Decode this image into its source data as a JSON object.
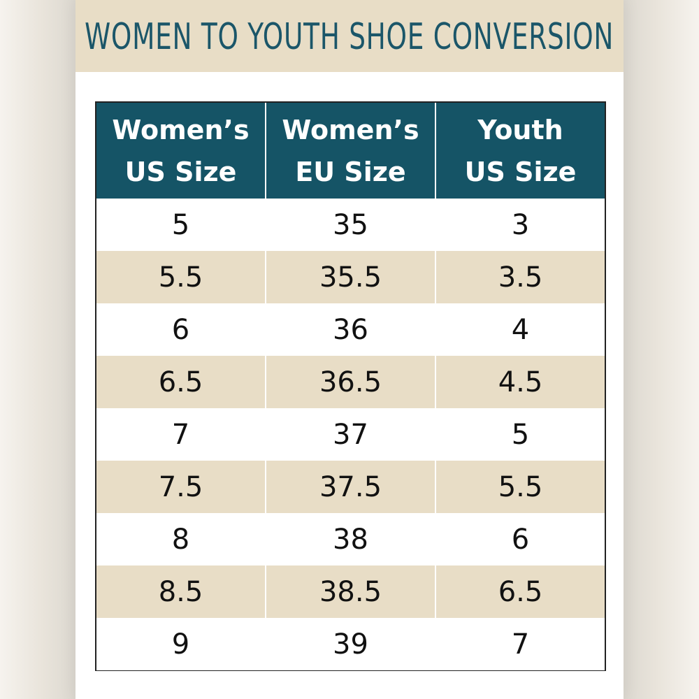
{
  "title": "WOMEN TO YOUTH SHOE CONVERSION",
  "colors": {
    "header_bg": "#155466",
    "title_text": "#1b5669",
    "band": "#e8ddc6",
    "row_alt": "#e8ddc6",
    "row_plain": "#ffffff"
  },
  "table": {
    "headers": [
      "Women’s\nUS Size",
      "Women’s\nEU Size",
      "Youth\nUS Size"
    ],
    "rows": [
      [
        "5",
        "35",
        "3"
      ],
      [
        "5.5",
        "35.5",
        "3.5"
      ],
      [
        "6",
        "36",
        "4"
      ],
      [
        "6.5",
        "36.5",
        "4.5"
      ],
      [
        "7",
        "37",
        "5"
      ],
      [
        "7.5",
        "37.5",
        "5.5"
      ],
      [
        "8",
        "38",
        "6"
      ],
      [
        "8.5",
        "38.5",
        "6.5"
      ],
      [
        "9",
        "39",
        "7"
      ]
    ]
  }
}
